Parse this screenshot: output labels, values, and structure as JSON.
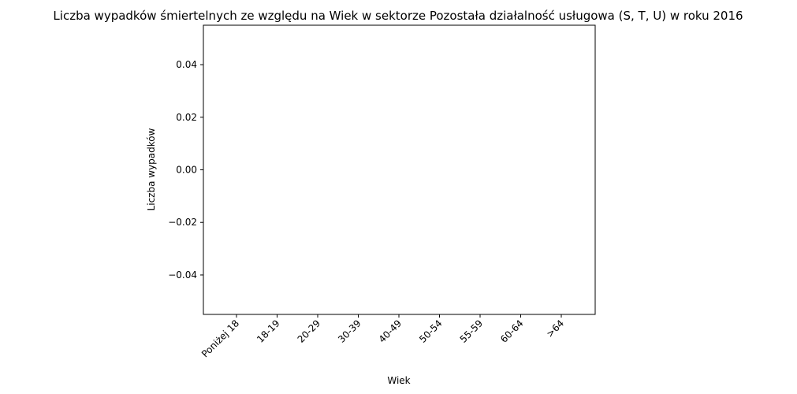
{
  "chart_data": {
    "type": "bar",
    "title": "Liczba wypadków śmiertelnych ze względu na Wiek w sektorze Pozostała działalność usługowa  (S, T, U)   w roku 2016",
    "xlabel": "Wiek",
    "ylabel": "Liczba wypadków",
    "categories": [
      "Poniżej 18",
      "18-19",
      "20-29",
      "30-39",
      "40-49",
      "50-54",
      "55-59",
      "60-64",
      ">64"
    ],
    "values": [
      0,
      0,
      0,
      0,
      0,
      0,
      0,
      0,
      0
    ],
    "ylim": [
      -0.055,
      0.055
    ],
    "yticks": [
      -0.04,
      -0.02,
      0.0,
      0.02,
      0.04
    ],
    "ytick_labels": [
      "−0.04",
      "−0.02",
      "0.00",
      "0.02",
      "0.04"
    ],
    "grid": false,
    "bar_color": "#1f77b4"
  }
}
